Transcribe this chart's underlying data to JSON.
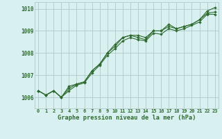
{
  "x": [
    0,
    1,
    2,
    3,
    4,
    5,
    6,
    7,
    8,
    9,
    10,
    11,
    12,
    13,
    14,
    15,
    16,
    17,
    18,
    19,
    20,
    21,
    22,
    23
  ],
  "line1": [
    1006.3,
    1006.1,
    1006.3,
    1006.0,
    1006.5,
    1006.6,
    1006.7,
    1007.2,
    1007.5,
    1008.0,
    1008.3,
    1008.7,
    1008.8,
    1008.8,
    1008.7,
    1009.0,
    1009.0,
    1009.3,
    1009.1,
    1009.2,
    1009.3,
    1009.5,
    1009.9,
    1010.05
  ],
  "line2": [
    1006.3,
    1006.1,
    1006.3,
    1006.0,
    1006.4,
    1006.6,
    1006.7,
    1007.2,
    1007.5,
    1008.0,
    1008.4,
    1008.7,
    1008.8,
    1008.7,
    1008.6,
    1009.0,
    1009.0,
    1009.2,
    1009.1,
    1009.2,
    1009.3,
    1009.5,
    1009.8,
    1009.85
  ],
  "line3": [
    1006.3,
    1006.1,
    1006.3,
    1006.0,
    1006.3,
    1006.55,
    1006.65,
    1007.1,
    1007.45,
    1007.9,
    1008.2,
    1008.55,
    1008.7,
    1008.6,
    1008.55,
    1008.9,
    1008.85,
    1009.1,
    1009.0,
    1009.1,
    1009.25,
    1009.4,
    1009.75,
    1009.75
  ],
  "ylim": [
    1005.5,
    1010.3
  ],
  "xlim": [
    -0.5,
    23.5
  ],
  "yticks": [
    1006,
    1007,
    1008,
    1009,
    1010
  ],
  "xticks": [
    0,
    1,
    2,
    3,
    4,
    5,
    6,
    7,
    8,
    9,
    10,
    11,
    12,
    13,
    14,
    15,
    16,
    17,
    18,
    19,
    20,
    21,
    22,
    23
  ],
  "line_color": "#2d6a2d",
  "bg_color": "#d8f0f0",
  "grid_color": "#b0c8c8",
  "xlabel": "Graphe pression niveau de la mer (hPa)",
  "marker": "D",
  "marker_size": 2.2,
  "line_width": 0.8,
  "ytick_fontsize": 5.5,
  "xtick_fontsize": 5.0,
  "xlabel_fontsize": 6.2
}
